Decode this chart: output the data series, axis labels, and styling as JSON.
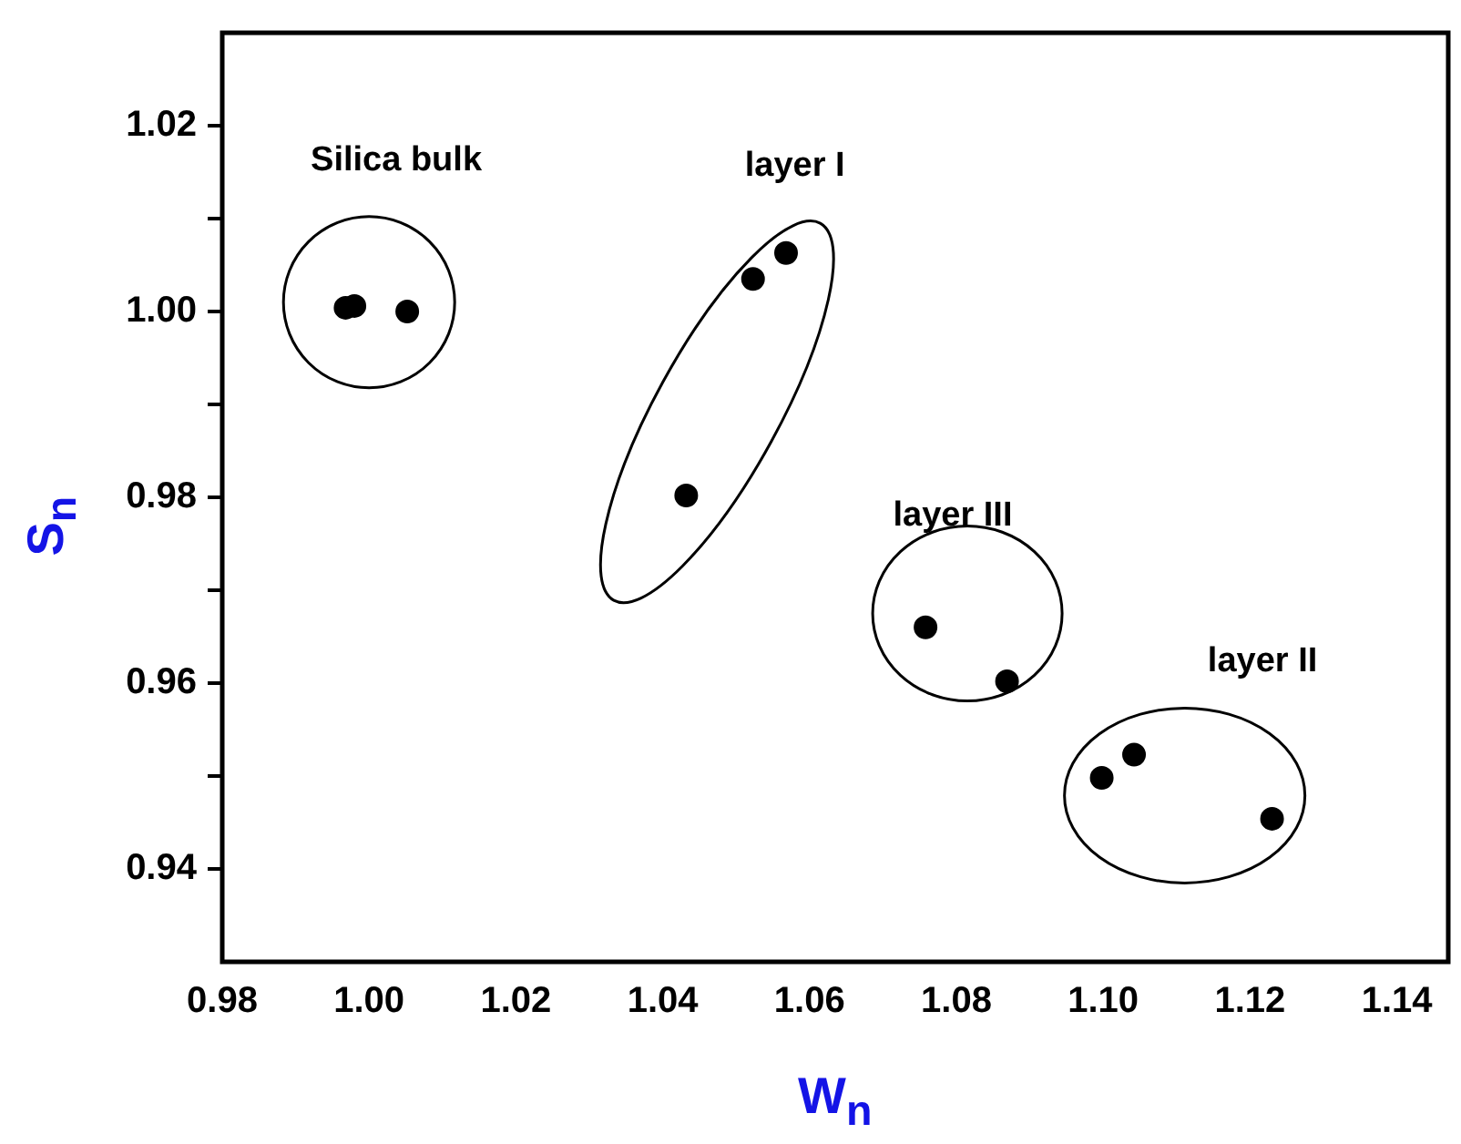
{
  "chart_data": {
    "type": "scatter",
    "xlabel": "W$_{n}$",
    "ylabel": "S$_{n}$",
    "x": [
      0.9968,
      0.998,
      1.0052,
      1.0523,
      1.0568,
      1.0432,
      1.0758,
      1.0869,
      1.0998,
      1.1042,
      1.123
    ],
    "values": [
      1.0004,
      1.0006,
      1.0,
      1.0035,
      1.0063,
      0.9802,
      0.966,
      0.9602,
      0.9498,
      0.9523,
      0.9454
    ],
    "color": "#000000",
    "marker": "circle",
    "xlim": [
      0.98,
      1.147
    ],
    "xticks": [
      0.98,
      {
        "value": 1.0,
        "label": "1.00"
      },
      1.02,
      1.04,
      1.06,
      1.08,
      {
        "value": 1.1,
        "label": "1.10"
      },
      1.12,
      1.14
    ],
    "ylim": [
      0.93,
      1.03
    ],
    "yticks": [
      0.94,
      {
        "value": 0.95,
        "label": null
      },
      0.96,
      {
        "value": 0.97,
        "label": null
      },
      0.98,
      {
        "value": 0.99,
        "label": null
      },
      {
        "value": 1.0,
        "label": "1.00"
      },
      {
        "value": 1.01,
        "label": null
      },
      1.02
    ],
    "annotations": [
      "Silica bulk",
      "layer I",
      "layer III",
      "layer II"
    ],
    "grid": false,
    "legend": false
  }
}
